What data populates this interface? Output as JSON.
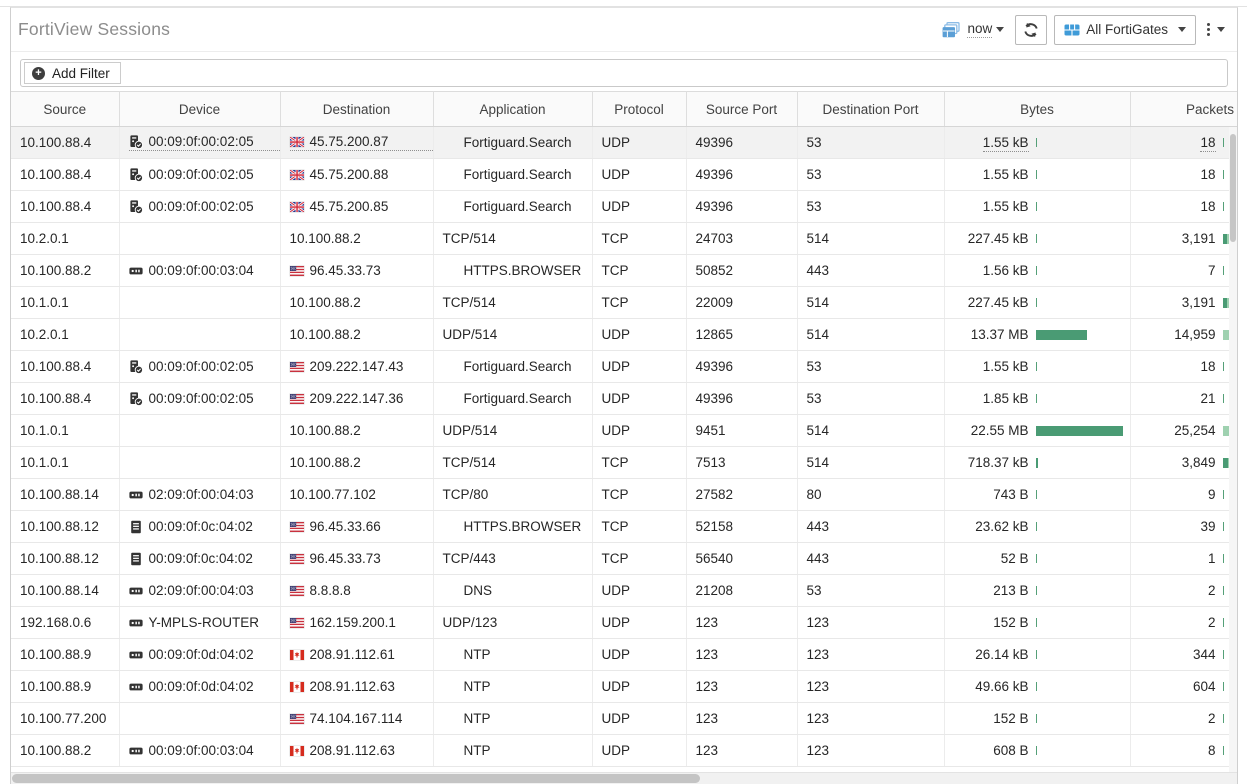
{
  "header": {
    "title": "FortiView Sessions",
    "time_selector": "now",
    "device_selector": "All FortiGates"
  },
  "filter": {
    "add_label": "Add Filter"
  },
  "colors": {
    "accent_blue": "#3f9bd8",
    "pane_icon_blue": "#5b9fd6",
    "bar_dark_green": "#4a9b74",
    "bar_light_green": "#9fd1b0",
    "title_gray": "#8c8c8c"
  },
  "table": {
    "columns": [
      "Source",
      "Device",
      "Destination",
      "Application",
      "Protocol",
      "Source Port",
      "Destination Port",
      "Bytes",
      "Packets"
    ],
    "bytes_max_raw": 22550000,
    "packets_max_raw": 25254,
    "rows": [
      {
        "source": "10.100.88.4",
        "device_icon": "server-icon",
        "device": "00:09:0f:00:02:05",
        "flag": "gb",
        "destination": "45.75.200.87",
        "application": "Fortiguard.Search",
        "protocol": "UDP",
        "source_port": "49396",
        "destination_port": "53",
        "bytes": "1.55 kB",
        "bytes_raw": 1550,
        "packets": "18",
        "packets_raw": 18,
        "hovered": true
      },
      {
        "source": "10.100.88.4",
        "device_icon": "server-icon",
        "device": "00:09:0f:00:02:05",
        "flag": "gb",
        "destination": "45.75.200.88",
        "application": "Fortiguard.Search",
        "protocol": "UDP",
        "source_port": "49396",
        "destination_port": "53",
        "bytes": "1.55 kB",
        "bytes_raw": 1550,
        "packets": "18",
        "packets_raw": 18
      },
      {
        "source": "10.100.88.4",
        "device_icon": "server-icon",
        "device": "00:09:0f:00:02:05",
        "flag": "gb",
        "destination": "45.75.200.85",
        "application": "Fortiguard.Search",
        "protocol": "UDP",
        "source_port": "49396",
        "destination_port": "53",
        "bytes": "1.55 kB",
        "bytes_raw": 1550,
        "packets": "18",
        "packets_raw": 18
      },
      {
        "source": "10.2.0.1",
        "device_icon": null,
        "device": "",
        "flag": null,
        "destination": "10.100.88.2",
        "application": "TCP/514",
        "protocol": "TCP",
        "source_port": "24703",
        "destination_port": "514",
        "bytes": "227.45 kB",
        "bytes_raw": 227450,
        "packets": "3,191",
        "packets_raw": 3191
      },
      {
        "source": "10.100.88.2",
        "device_icon": "router-icon",
        "device": "00:09:0f:00:03:04",
        "flag": "us",
        "destination": "96.45.33.73",
        "application": "HTTPS.BROWSER",
        "protocol": "TCP",
        "source_port": "50852",
        "destination_port": "443",
        "bytes": "1.56 kB",
        "bytes_raw": 1560,
        "packets": "7",
        "packets_raw": 7
      },
      {
        "source": "10.1.0.1",
        "device_icon": null,
        "device": "",
        "flag": null,
        "destination": "10.100.88.2",
        "application": "TCP/514",
        "protocol": "TCP",
        "source_port": "22009",
        "destination_port": "514",
        "bytes": "227.45 kB",
        "bytes_raw": 227450,
        "packets": "3,191",
        "packets_raw": 3191
      },
      {
        "source": "10.2.0.1",
        "device_icon": null,
        "device": "",
        "flag": null,
        "destination": "10.100.88.2",
        "application": "UDP/514",
        "protocol": "UDP",
        "source_port": "12865",
        "destination_port": "514",
        "bytes": "13.37 MB",
        "bytes_raw": 13370000,
        "packets": "14,959",
        "packets_raw": 14959
      },
      {
        "source": "10.100.88.4",
        "device_icon": "server-icon",
        "device": "00:09:0f:00:02:05",
        "flag": "us",
        "destination": "209.222.147.43",
        "application": "Fortiguard.Search",
        "protocol": "UDP",
        "source_port": "49396",
        "destination_port": "53",
        "bytes": "1.55 kB",
        "bytes_raw": 1550,
        "packets": "18",
        "packets_raw": 18
      },
      {
        "source": "10.100.88.4",
        "device_icon": "server-icon",
        "device": "00:09:0f:00:02:05",
        "flag": "us",
        "destination": "209.222.147.36",
        "application": "Fortiguard.Search",
        "protocol": "UDP",
        "source_port": "49396",
        "destination_port": "53",
        "bytes": "1.85 kB",
        "bytes_raw": 1850,
        "packets": "21",
        "packets_raw": 21
      },
      {
        "source": "10.1.0.1",
        "device_icon": null,
        "device": "",
        "flag": null,
        "destination": "10.100.88.2",
        "application": "UDP/514",
        "protocol": "UDP",
        "source_port": "9451",
        "destination_port": "514",
        "bytes": "22.55 MB",
        "bytes_raw": 22550000,
        "packets": "25,254",
        "packets_raw": 25254
      },
      {
        "source": "10.1.0.1",
        "device_icon": null,
        "device": "",
        "flag": null,
        "destination": "10.100.88.2",
        "application": "TCP/514",
        "protocol": "TCP",
        "source_port": "7513",
        "destination_port": "514",
        "bytes": "718.37 kB",
        "bytes_raw": 718370,
        "packets": "3,849",
        "packets_raw": 3849
      },
      {
        "source": "10.100.88.14",
        "device_icon": "router-icon",
        "device": "02:09:0f:00:04:03",
        "flag": null,
        "destination": "10.100.77.102",
        "application": "TCP/80",
        "protocol": "TCP",
        "source_port": "27582",
        "destination_port": "80",
        "bytes": "743 B",
        "bytes_raw": 743,
        "packets": "9",
        "packets_raw": 9
      },
      {
        "source": "10.100.88.12",
        "device_icon": "list-icon",
        "device": "00:09:0f:0c:04:02",
        "flag": "us",
        "destination": "96.45.33.66",
        "application": "HTTPS.BROWSER",
        "protocol": "TCP",
        "source_port": "52158",
        "destination_port": "443",
        "bytes": "23.62 kB",
        "bytes_raw": 23620,
        "packets": "39",
        "packets_raw": 39
      },
      {
        "source": "10.100.88.12",
        "device_icon": "list-icon",
        "device": "00:09:0f:0c:04:02",
        "flag": "us",
        "destination": "96.45.33.73",
        "application": "TCP/443",
        "protocol": "TCP",
        "source_port": "56540",
        "destination_port": "443",
        "bytes": "52 B",
        "bytes_raw": 52,
        "packets": "1",
        "packets_raw": 1
      },
      {
        "source": "10.100.88.14",
        "device_icon": "router-icon",
        "device": "02:09:0f:00:04:03",
        "flag": "us",
        "destination": "8.8.8.8",
        "application": "DNS",
        "protocol": "UDP",
        "source_port": "21208",
        "destination_port": "53",
        "bytes": "213 B",
        "bytes_raw": 213,
        "packets": "2",
        "packets_raw": 2
      },
      {
        "source": "192.168.0.6",
        "device_icon": "router-icon",
        "device": "Y-MPLS-ROUTER",
        "flag": "us",
        "destination": "162.159.200.1",
        "application": "UDP/123",
        "protocol": "UDP",
        "source_port": "123",
        "destination_port": "123",
        "bytes": "152 B",
        "bytes_raw": 152,
        "packets": "2",
        "packets_raw": 2
      },
      {
        "source": "10.100.88.9",
        "device_icon": "router-icon",
        "device": "00:09:0f:0d:04:02",
        "flag": "ca",
        "destination": "208.91.112.61",
        "application": "NTP",
        "protocol": "UDP",
        "source_port": "123",
        "destination_port": "123",
        "bytes": "26.14 kB",
        "bytes_raw": 26140,
        "packets": "344",
        "packets_raw": 344
      },
      {
        "source": "10.100.88.9",
        "device_icon": "router-icon",
        "device": "00:09:0f:0d:04:02",
        "flag": "ca",
        "destination": "208.91.112.63",
        "application": "NTP",
        "protocol": "UDP",
        "source_port": "123",
        "destination_port": "123",
        "bytes": "49.66 kB",
        "bytes_raw": 49660,
        "packets": "604",
        "packets_raw": 604
      },
      {
        "source": "10.100.77.200",
        "device_icon": null,
        "device": "",
        "flag": "us",
        "destination": "74.104.167.114",
        "application": "NTP",
        "protocol": "UDP",
        "source_port": "123",
        "destination_port": "123",
        "bytes": "152 B",
        "bytes_raw": 152,
        "packets": "2",
        "packets_raw": 2
      },
      {
        "source": "10.100.88.2",
        "device_icon": "router-icon",
        "device": "00:09:0f:00:03:04",
        "flag": "ca",
        "destination": "208.91.112.63",
        "application": "NTP",
        "protocol": "UDP",
        "source_port": "123",
        "destination_port": "123",
        "bytes": "608 B",
        "bytes_raw": 608,
        "packets": "8",
        "packets_raw": 8
      }
    ]
  }
}
